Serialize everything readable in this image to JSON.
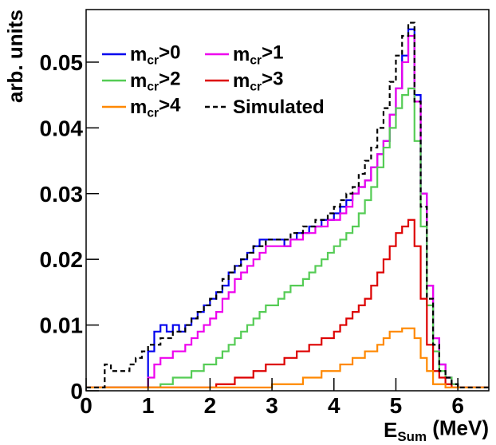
{
  "chart_data": {
    "type": "histogram",
    "xlabel": "ESum (MeV)",
    "ylabel": "arb. units",
    "xlim": [
      0,
      6.5
    ],
    "ylim": [
      0,
      0.058
    ],
    "xticks": [
      0,
      1,
      2,
      3,
      4,
      5,
      6
    ],
    "yticks": [
      0,
      0.01,
      0.02,
      0.03,
      0.04,
      0.05
    ],
    "legend": "upper left",
    "bins": [
      0,
      0.1,
      0.2,
      0.3,
      0.4,
      0.5,
      0.6,
      0.7,
      0.8,
      0.9,
      1,
      1.1,
      1.2,
      1.3,
      1.4,
      1.5,
      1.6,
      1.7,
      1.8,
      1.9,
      2,
      2.1,
      2.2,
      2.3,
      2.4,
      2.5,
      2.6,
      2.7,
      2.8,
      2.9,
      3,
      3.1,
      3.2,
      3.3,
      3.4,
      3.5,
      3.6,
      3.7,
      3.8,
      3.9,
      4,
      4.1,
      4.2,
      4.3,
      4.4,
      4.5,
      4.6,
      4.7,
      4.8,
      4.9,
      5,
      5.1,
      5.2,
      5.3,
      5.4,
      5.5,
      5.6,
      5.7,
      5.8,
      5.9,
      6,
      6.1,
      6.2,
      6.3,
      6.4,
      6.5
    ],
    "series": [
      {
        "name": "mcr>0",
        "color": "#0000ee",
        "linestyle": "solid",
        "values": [
          0.0005,
          0.0005,
          0.0005,
          0.0005,
          0.0005,
          0.0005,
          0.0005,
          0.0005,
          0.0005,
          0.0005,
          0.006,
          0.009,
          0.01,
          0.009,
          0.01,
          0.009,
          0.01,
          0.011,
          0.012,
          0.013,
          0.014,
          0.015,
          0.016,
          0.018,
          0.019,
          0.02,
          0.021,
          0.022,
          0.023,
          0.023,
          0.023,
          0.023,
          0.022,
          0.023,
          0.024,
          0.024,
          0.025,
          0.025,
          0.026,
          0.026,
          0.027,
          0.028,
          0.029,
          0.03,
          0.031,
          0.032,
          0.034,
          0.036,
          0.038,
          0.042,
          0.046,
          0.051,
          0.055,
          0.045,
          0.03,
          0.016,
          0.008,
          0.004,
          0.002,
          0.001,
          0.0005,
          0.0005,
          0.0005,
          0.0005,
          0.0005
        ]
      },
      {
        "name": "mcr>1",
        "color": "#ee00ee",
        "linestyle": "solid",
        "values": [
          0.0005,
          0.0005,
          0.0005,
          0.0005,
          0.0005,
          0.0005,
          0.0005,
          0.0005,
          0.0005,
          0.0005,
          0.002,
          0.004,
          0.005,
          0.005,
          0.006,
          0.006,
          0.007,
          0.008,
          0.009,
          0.01,
          0.011,
          0.012,
          0.014,
          0.015,
          0.017,
          0.018,
          0.019,
          0.02,
          0.021,
          0.022,
          0.022,
          0.022,
          0.022,
          0.023,
          0.023,
          0.024,
          0.024,
          0.025,
          0.025,
          0.026,
          0.026,
          0.027,
          0.028,
          0.03,
          0.031,
          0.032,
          0.034,
          0.036,
          0.038,
          0.042,
          0.046,
          0.05,
          0.054,
          0.044,
          0.03,
          0.016,
          0.008,
          0.004,
          0.002,
          0.001,
          0.0005,
          0.0005,
          0.0005,
          0.0005,
          0.0005
        ]
      },
      {
        "name": "mcr>2",
        "color": "#55cc55",
        "linestyle": "solid",
        "values": [
          0.0005,
          0.0005,
          0.0005,
          0.0005,
          0.0005,
          0.0005,
          0.0005,
          0.0005,
          0.0005,
          0.0005,
          0.0005,
          0.0005,
          0.001,
          0.001,
          0.002,
          0.002,
          0.002,
          0.003,
          0.003,
          0.004,
          0.004,
          0.005,
          0.006,
          0.007,
          0.008,
          0.009,
          0.01,
          0.011,
          0.012,
          0.013,
          0.013,
          0.014,
          0.015,
          0.016,
          0.016,
          0.017,
          0.018,
          0.019,
          0.02,
          0.021,
          0.022,
          0.023,
          0.024,
          0.025,
          0.027,
          0.029,
          0.031,
          0.034,
          0.037,
          0.04,
          0.043,
          0.045,
          0.046,
          0.038,
          0.025,
          0.013,
          0.006,
          0.003,
          0.002,
          0.001,
          0.0005,
          0.0005,
          0.0005,
          0.0005,
          0.0005
        ]
      },
      {
        "name": "mcr>3",
        "color": "#dd0000",
        "linestyle": "solid",
        "values": [
          0.0005,
          0.0005,
          0.0005,
          0.0005,
          0.0005,
          0.0005,
          0.0005,
          0.0005,
          0.0005,
          0.0005,
          0.0005,
          0.0005,
          0.0005,
          0.0005,
          0.0005,
          0.0005,
          0.0005,
          0.0005,
          0.0005,
          0.0005,
          0.0005,
          0.001,
          0.001,
          0.001,
          0.002,
          0.002,
          0.002,
          0.003,
          0.003,
          0.004,
          0.004,
          0.004,
          0.005,
          0.005,
          0.006,
          0.006,
          0.007,
          0.007,
          0.008,
          0.008,
          0.009,
          0.01,
          0.011,
          0.012,
          0.013,
          0.014,
          0.016,
          0.018,
          0.02,
          0.022,
          0.024,
          0.025,
          0.026,
          0.022,
          0.014,
          0.007,
          0.003,
          0.002,
          0.001,
          0.0005,
          0.0005,
          0.0005,
          0.0005,
          0.0005,
          0.0005
        ]
      },
      {
        "name": "mcr>4",
        "color": "#ff8800",
        "linestyle": "solid",
        "values": [
          0.0005,
          0.0005,
          0.0005,
          0.0005,
          0.0005,
          0.0005,
          0.0005,
          0.0005,
          0.0005,
          0.0005,
          0.0005,
          0.0005,
          0.0005,
          0.0005,
          0.0005,
          0.0005,
          0.0005,
          0.0005,
          0.0005,
          0.0005,
          0.0005,
          0.0005,
          0.0005,
          0.0005,
          0.0005,
          0.0005,
          0.0005,
          0.0005,
          0.0005,
          0.0005,
          0.001,
          0.001,
          0.001,
          0.001,
          0.001,
          0.002,
          0.002,
          0.002,
          0.003,
          0.003,
          0.003,
          0.004,
          0.004,
          0.005,
          0.005,
          0.006,
          0.006,
          0.007,
          0.008,
          0.009,
          0.009,
          0.0095,
          0.0095,
          0.008,
          0.005,
          0.003,
          0.001,
          0.001,
          0.0005,
          0.0005,
          0.0005,
          0.0005,
          0.0005,
          0.0005,
          0.0005
        ]
      },
      {
        "name": "Simulated",
        "color": "#000000",
        "linestyle": "dashed",
        "values": [
          0.0005,
          0.0005,
          0.0005,
          0.004,
          0.003,
          0.003,
          0.003,
          0.004,
          0.005,
          0.006,
          0.007,
          0.007,
          0.008,
          0.008,
          0.009,
          0.009,
          0.01,
          0.011,
          0.012,
          0.013,
          0.014,
          0.015,
          0.017,
          0.018,
          0.019,
          0.02,
          0.021,
          0.022,
          0.022,
          0.023,
          0.023,
          0.023,
          0.023,
          0.024,
          0.024,
          0.025,
          0.025,
          0.026,
          0.026,
          0.027,
          0.028,
          0.029,
          0.03,
          0.031,
          0.033,
          0.035,
          0.037,
          0.04,
          0.043,
          0.047,
          0.051,
          0.054,
          0.056,
          0.044,
          0.028,
          0.014,
          0.007,
          0.003,
          0.002,
          0.001,
          0.0005,
          0.0005,
          0.0005,
          0.0005,
          0.0005
        ]
      }
    ]
  }
}
